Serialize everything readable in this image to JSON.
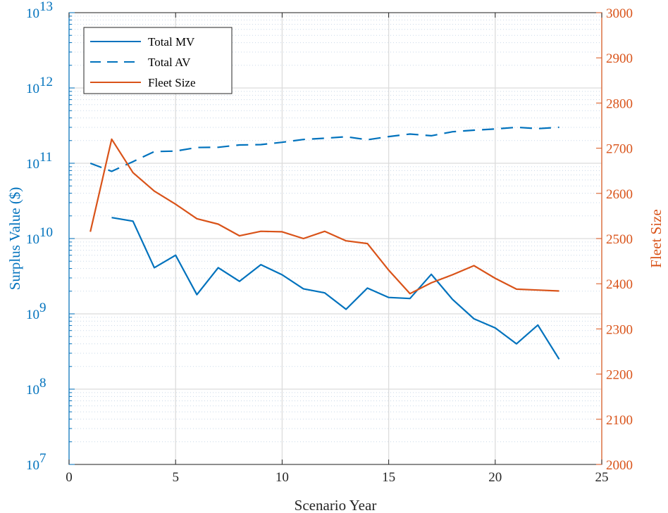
{
  "chart_data": {
    "type": "line",
    "xlabel": "Scenario Year",
    "ylabel_left": "Surplus Value ($)",
    "ylabel_right": "Fleet Size",
    "xlim": [
      0,
      25
    ],
    "ylim_left": [
      10000000,
      10000000000000
    ],
    "yscale_left": "log",
    "ylim_right": [
      2000,
      3000
    ],
    "grid": true,
    "legend_position": "top-left",
    "x_ticks": [
      "0",
      "5",
      "10",
      "15",
      "20",
      "25"
    ],
    "y_left_ticks": [
      {
        "base": "10",
        "exp": "7"
      },
      {
        "base": "10",
        "exp": "8"
      },
      {
        "base": "10",
        "exp": "9"
      },
      {
        "base": "10",
        "exp": "10"
      },
      {
        "base": "10",
        "exp": "11"
      },
      {
        "base": "10",
        "exp": "12"
      },
      {
        "base": "10",
        "exp": "13"
      }
    ],
    "y_right_ticks": [
      "2000",
      "2100",
      "2200",
      "2300",
      "2400",
      "2500",
      "2600",
      "2700",
      "2800",
      "2900",
      "3000"
    ],
    "series": [
      {
        "name": "Total MV",
        "axis": "left",
        "style": "solid",
        "color": "#0072BD",
        "x": [
          2,
          3,
          4,
          5,
          6,
          7,
          8,
          9,
          10,
          11,
          12,
          13,
          14,
          15,
          16,
          17,
          18,
          19,
          20,
          21,
          22,
          23
        ],
        "y": [
          19000000000,
          17000000000,
          4100000000,
          6000000000,
          1800000000,
          4100000000,
          2700000000,
          4500000000,
          3300000000,
          2150000000,
          1900000000,
          1150000000,
          2200000000,
          1650000000,
          1600000000,
          3350000000,
          1550000000,
          860000000,
          650000000,
          400000000,
          710000000,
          250000000
        ]
      },
      {
        "name": "Total AV",
        "axis": "left",
        "style": "dashed",
        "color": "#0072BD",
        "x": [
          1,
          2,
          3,
          4,
          5,
          6,
          7,
          8,
          9,
          10,
          11,
          12,
          13,
          14,
          15,
          16,
          17,
          18,
          19,
          20,
          21,
          22,
          23
        ],
        "y": [
          100000000000,
          78000000000,
          105000000000,
          143000000000,
          145000000000,
          162000000000,
          163000000000,
          175000000000,
          177000000000,
          190000000000,
          207000000000,
          215000000000,
          225000000000,
          205000000000,
          226000000000,
          244000000000,
          232000000000,
          262000000000,
          275000000000,
          285000000000,
          300000000000,
          288000000000,
          300000000000
        ]
      },
      {
        "name": "Fleet Size",
        "axis": "right",
        "style": "solid",
        "color": "#D95319",
        "x": [
          1,
          2,
          3,
          4,
          5,
          6,
          7,
          8,
          9,
          10,
          11,
          12,
          13,
          14,
          15,
          16,
          17,
          18,
          19,
          20,
          21,
          22,
          23
        ],
        "y": [
          2515,
          2720,
          2646,
          2605,
          2576,
          2544,
          2532,
          2506,
          2516,
          2515,
          2500,
          2516,
          2495,
          2489,
          2430,
          2378,
          2402,
          2420,
          2440,
          2412,
          2388,
          2386,
          2384
        ]
      }
    ]
  }
}
